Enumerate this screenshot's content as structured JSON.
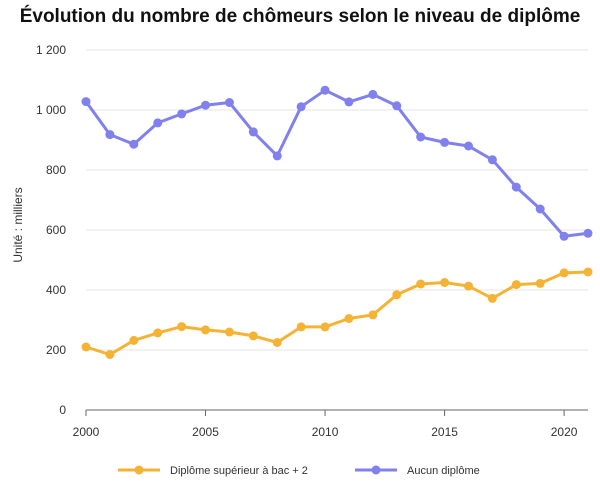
{
  "chart_data": {
    "type": "line",
    "title": "Évolution du nombre de chômeurs selon le niveau de diplôme",
    "ylabel": "Unité : milliers",
    "xlabel": "",
    "x": [
      2000,
      2001,
      2002,
      2003,
      2004,
      2005,
      2006,
      2007,
      2008,
      2009,
      2010,
      2011,
      2012,
      2013,
      2014,
      2015,
      2016,
      2017,
      2018,
      2019,
      2020,
      2021
    ],
    "xlim": [
      2000,
      2021
    ],
    "ylim": [
      0,
      1200
    ],
    "x_ticks": [
      2000,
      2005,
      2010,
      2015,
      2020
    ],
    "x_tick_labels": [
      "2000",
      "2005",
      "2010",
      "2015",
      "2020"
    ],
    "y_ticks": [
      0,
      200,
      400,
      600,
      800,
      1000,
      1200
    ],
    "y_tick_labels": [
      "0",
      "200",
      "400",
      "600",
      "800",
      "1 000",
      "1 200"
    ],
    "grid": "horizontal",
    "legend_position": "bottom",
    "series": [
      {
        "name": "Diplôme supérieur à bac + 2",
        "color": "#f5b335",
        "values": [
          210,
          185,
          232,
          257,
          278,
          267,
          260,
          247,
          225,
          277,
          277,
          305,
          317,
          384,
          420,
          425,
          413,
          372,
          418,
          422,
          457,
          460
        ]
      },
      {
        "name": "Aucun diplôme",
        "color": "#8080ee",
        "values": [
          1028,
          918,
          886,
          957,
          987,
          1016,
          1025,
          927,
          847,
          1011,
          1066,
          1027,
          1052,
          1014,
          910,
          892,
          880,
          834,
          743,
          670,
          579,
          589
        ]
      }
    ]
  }
}
